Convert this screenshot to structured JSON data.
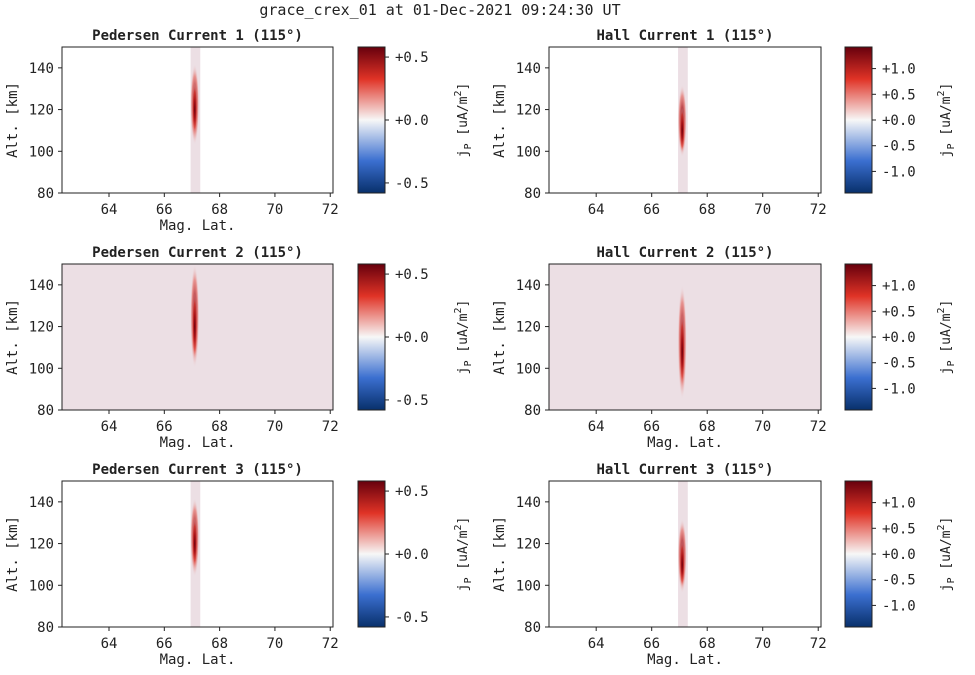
{
  "suptitle": "grace_crex_01 at 01-Dec-2021 09:24:30 UT",
  "colors": {
    "cmap_low": "#08306b",
    "cmap_blue": "#3b6fd0",
    "cmap_mid": "#f7f7f7",
    "cmap_red": "#e03326",
    "cmap_high": "#67000d",
    "background_band": "#ecdfe4"
  },
  "chart_data": [
    {
      "type": "heatmap",
      "title": "Pedersen Current 1 (115°)",
      "xlabel": "Mag. Lat.",
      "ylabel": "Alt. [km]",
      "xlim": [
        62.3,
        72.1
      ],
      "ylim": [
        80,
        150
      ],
      "xticks": [
        "64",
        "66",
        "68",
        "70",
        "72"
      ],
      "yticks": [
        "80",
        "100",
        "120",
        "140"
      ],
      "background_band": [
        66.95,
        67.3
      ],
      "band_full_width": false,
      "feature": {
        "lat": 67.1,
        "alt_center": 120,
        "alt_extent": [
          103,
          142
        ],
        "peak": 0.55
      },
      "colorbar": {
        "label": "jP [uA/m2]",
        "range": [
          -0.58,
          0.58
        ],
        "ticks": [
          0.5,
          0.0,
          -0.5
        ],
        "tick_labels": [
          "+0.5",
          "+0.0",
          "-0.5"
        ]
      }
    },
    {
      "type": "heatmap",
      "title": "Hall Current 1 (115°)",
      "xlabel": "",
      "ylabel": "Alt. [km]",
      "xlim": [
        62.3,
        72.1
      ],
      "ylim": [
        80,
        150
      ],
      "xticks": [
        "64",
        "66",
        "68",
        "70",
        "72"
      ],
      "yticks": [
        "80",
        "100",
        "120",
        "140"
      ],
      "background_band": [
        66.95,
        67.3
      ],
      "band_full_width": false,
      "feature": {
        "lat": 67.1,
        "alt_center": 110,
        "alt_extent": [
          97,
          132
        ],
        "peak": 1.3
      },
      "colorbar": {
        "label": "jP [uA/m2]",
        "range": [
          -1.42,
          1.42
        ],
        "ticks": [
          1.0,
          0.5,
          0.0,
          -0.5,
          -1.0
        ],
        "tick_labels": [
          "+1.0",
          "+0.5",
          "+0.0",
          "-0.5",
          "-1.0"
        ]
      }
    },
    {
      "type": "heatmap",
      "title": "Pedersen Current 2 (115°)",
      "xlabel": "Mag. Lat.",
      "ylabel": "Alt. [km]",
      "xlim": [
        62.3,
        72.1
      ],
      "ylim": [
        80,
        150
      ],
      "xticks": [
        "64",
        "66",
        "68",
        "70",
        "72"
      ],
      "yticks": [
        "80",
        "100",
        "120",
        "140"
      ],
      "background_band": [
        62.3,
        72.1
      ],
      "band_full_width": true,
      "feature": {
        "lat": 67.1,
        "alt_center": 120,
        "alt_extent": [
          100,
          150
        ],
        "peak": 0.55
      },
      "colorbar": {
        "label": "jP [uA/m2]",
        "range": [
          -0.58,
          0.58
        ],
        "ticks": [
          0.5,
          0.0,
          -0.5
        ],
        "tick_labels": [
          "+0.5",
          "+0.0",
          "-0.5"
        ]
      }
    },
    {
      "type": "heatmap",
      "title": "Hall Current 2 (115°)",
      "xlabel": "Mag. Lat.",
      "ylabel": "Alt. [km]",
      "xlim": [
        62.3,
        72.1
      ],
      "ylim": [
        80,
        150
      ],
      "xticks": [
        "64",
        "66",
        "68",
        "70",
        "72"
      ],
      "yticks": [
        "80",
        "100",
        "120",
        "140"
      ],
      "background_band": [
        62.3,
        72.1
      ],
      "band_full_width": true,
      "feature": {
        "lat": 67.1,
        "alt_center": 108,
        "alt_extent": [
          85,
          140
        ],
        "peak": 1.3
      },
      "colorbar": {
        "label": "jP [uA/m2]",
        "range": [
          -1.42,
          1.42
        ],
        "ticks": [
          1.0,
          0.5,
          0.0,
          -0.5,
          -1.0
        ],
        "tick_labels": [
          "+1.0",
          "+0.5",
          "+0.0",
          "-0.5",
          "-1.0"
        ]
      }
    },
    {
      "type": "heatmap",
      "title": "Pedersen Current 3 (115°)",
      "xlabel": "Mag. Lat.",
      "ylabel": "Alt. [km]",
      "xlim": [
        62.3,
        72.1
      ],
      "ylim": [
        80,
        150
      ],
      "xticks": [
        "64",
        "66",
        "68",
        "70",
        "72"
      ],
      "yticks": [
        "80",
        "100",
        "120",
        "140"
      ],
      "background_band": [
        66.95,
        67.3
      ],
      "band_full_width": false,
      "feature": {
        "lat": 67.1,
        "alt_center": 120,
        "alt_extent": [
          104,
          142
        ],
        "peak": 0.55
      },
      "colorbar": {
        "label": "jP [uA/m2]",
        "range": [
          -0.58,
          0.58
        ],
        "ticks": [
          0.5,
          0.0,
          -0.5
        ],
        "tick_labels": [
          "+0.5",
          "+0.0",
          "-0.5"
        ]
      }
    },
    {
      "type": "heatmap",
      "title": "Hall Current 3 (115°)",
      "xlabel": "Mag. Lat.",
      "ylabel": "Alt. [km]",
      "xlim": [
        62.3,
        72.1
      ],
      "ylim": [
        80,
        150
      ],
      "xticks": [
        "64",
        "66",
        "68",
        "70",
        "72"
      ],
      "yticks": [
        "80",
        "100",
        "120",
        "140"
      ],
      "background_band": [
        66.95,
        67.3
      ],
      "band_full_width": false,
      "feature": {
        "lat": 67.1,
        "alt_center": 110,
        "alt_extent": [
          96,
          132
        ],
        "peak": 1.3
      },
      "colorbar": {
        "label": "jP [uA/m2]",
        "range": [
          -1.42,
          1.42
        ],
        "ticks": [
          1.0,
          0.5,
          0.0,
          -0.5,
          -1.0
        ],
        "tick_labels": [
          "+1.0",
          "+0.5",
          "+0.0",
          "-0.5",
          "-1.0"
        ]
      }
    }
  ]
}
